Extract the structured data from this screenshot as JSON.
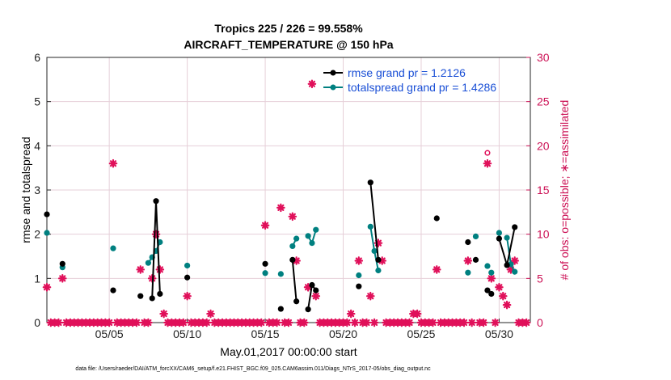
{
  "chart_data": {
    "type": "line",
    "title_line1": "Tropics 225 / 226 = 99.558%",
    "title_line2": "AIRCRAFT_TEMPERATURE @ 150 hPa",
    "xlabel": "May.01,2017 00:00:00 start",
    "ylabel": "rmse and totalspread",
    "y2label": "# of obs: o=possible; ∗=assimilated",
    "footer": "data file: /Users/raeder/DAI/ATM_forcXX/CAM6_setup/f.e21.FHIST_BGC.f09_025.CAM6assim.011/Diags_NTrS_2017-05/obs_diag_output.nc",
    "xlim": [
      1,
      32
    ],
    "ylim": [
      0,
      6
    ],
    "y2lim": [
      0,
      30
    ],
    "x_ticks": [
      5,
      10,
      15,
      20,
      25,
      30
    ],
    "x_tick_labels": [
      "05/05",
      "05/10",
      "05/15",
      "05/20",
      "05/25",
      "05/30"
    ],
    "y_ticks": [
      0,
      1,
      2,
      3,
      4,
      5,
      6
    ],
    "y_tick_labels": [
      "0",
      "1",
      "2",
      "3",
      "4",
      "5",
      "6"
    ],
    "y2_ticks": [
      0,
      5,
      10,
      15,
      20,
      25,
      30
    ],
    "y2_tick_labels": [
      "0",
      "5",
      "10",
      "15",
      "20",
      "25",
      "30"
    ],
    "grid": true,
    "legend_position": "top-right",
    "colors": {
      "rmse": "#000000",
      "spread": "#008080",
      "obs": "#e0105a",
      "legend_text": "#1a4fd6",
      "axis_right": "#cc1155"
    },
    "series": [
      {
        "name": "rmse grand pr = 1.2126",
        "key": "rmse",
        "points": [
          [
            1.0,
            2.45
          ],
          [
            2.0,
            1.33
          ],
          [
            5.25,
            0.73
          ],
          [
            7.0,
            0.6
          ],
          [
            7.75,
            0.55
          ],
          [
            8.0,
            2.75
          ],
          [
            8.25,
            0.65
          ],
          [
            10.0,
            1.02
          ],
          [
            15.0,
            1.33
          ],
          [
            16.0,
            0.31
          ],
          [
            16.75,
            1.42
          ],
          [
            17.0,
            0.48
          ],
          [
            17.75,
            0.3
          ],
          [
            18.0,
            0.85
          ],
          [
            18.25,
            0.73
          ],
          [
            21.0,
            0.82
          ],
          [
            21.75,
            3.17
          ],
          [
            22.25,
            1.42
          ],
          [
            26.0,
            2.36
          ],
          [
            28.0,
            1.82
          ],
          [
            28.5,
            1.42
          ],
          [
            29.25,
            0.73
          ],
          [
            29.5,
            0.65
          ],
          [
            30.0,
            1.9
          ],
          [
            30.5,
            1.3
          ],
          [
            31.0,
            2.16
          ]
        ],
        "segments": [
          [
            [
              7.75,
              0.55
            ],
            [
              8.0,
              2.75
            ],
            [
              8.25,
              0.65
            ]
          ],
          [
            [
              16.75,
              1.42
            ],
            [
              17.0,
              0.48
            ]
          ],
          [
            [
              17.75,
              0.3
            ],
            [
              18.0,
              0.85
            ],
            [
              18.25,
              0.73
            ]
          ],
          [
            [
              21.75,
              3.17
            ],
            [
              22.25,
              1.42
            ]
          ],
          [
            [
              29.25,
              0.73
            ],
            [
              29.5,
              0.65
            ]
          ],
          [
            [
              30.0,
              1.9
            ],
            [
              30.5,
              1.3
            ],
            [
              31.0,
              2.16
            ]
          ]
        ]
      },
      {
        "name": "totalspread grand pr = 1.4286",
        "key": "spread",
        "points": [
          [
            1.0,
            2.03
          ],
          [
            2.0,
            1.25
          ],
          [
            5.25,
            1.68
          ],
          [
            7.5,
            1.35
          ],
          [
            7.75,
            1.48
          ],
          [
            8.0,
            1.62
          ],
          [
            8.25,
            1.82
          ],
          [
            10.0,
            1.29
          ],
          [
            15.0,
            1.12
          ],
          [
            16.0,
            1.1
          ],
          [
            16.75,
            1.73
          ],
          [
            17.0,
            1.9
          ],
          [
            17.75,
            1.96
          ],
          [
            18.0,
            1.8
          ],
          [
            18.25,
            2.1
          ],
          [
            21.0,
            1.07
          ],
          [
            21.75,
            2.17
          ],
          [
            22.0,
            1.62
          ],
          [
            22.25,
            1.18
          ],
          [
            28.0,
            1.13
          ],
          [
            28.5,
            1.95
          ],
          [
            29.25,
            1.28
          ],
          [
            29.5,
            1.13
          ],
          [
            30.0,
            2.03
          ],
          [
            30.5,
            1.92
          ],
          [
            30.75,
            1.32
          ],
          [
            31.0,
            1.15
          ]
        ],
        "segments": [
          [
            [
              7.5,
              1.35
            ],
            [
              7.75,
              1.48
            ],
            [
              8.0,
              1.62
            ],
            [
              8.25,
              1.82
            ]
          ],
          [
            [
              16.75,
              1.73
            ],
            [
              17.0,
              1.9
            ]
          ],
          [
            [
              17.75,
              1.96
            ],
            [
              18.0,
              1.8
            ],
            [
              18.25,
              2.1
            ]
          ],
          [
            [
              21.75,
              2.17
            ],
            [
              22.0,
              1.62
            ],
            [
              22.25,
              1.18
            ]
          ],
          [
            [
              30.5,
              1.92
            ],
            [
              30.75,
              1.32
            ],
            [
              31.0,
              1.15
            ]
          ]
        ]
      },
      {
        "name": "# of obs assimilated",
        "key": "obs_assimilated",
        "points": [
          [
            1,
            4
          ],
          [
            2,
            5
          ],
          [
            5.25,
            18
          ],
          [
            7,
            6
          ],
          [
            7.75,
            5
          ],
          [
            8.0,
            10
          ],
          [
            8.25,
            6
          ],
          [
            8.5,
            1
          ],
          [
            10,
            3
          ],
          [
            11.5,
            1
          ],
          [
            15,
            11
          ],
          [
            16,
            13
          ],
          [
            16.75,
            12
          ],
          [
            17,
            7
          ],
          [
            17.75,
            4
          ],
          [
            18,
            27
          ],
          [
            18.25,
            3
          ],
          [
            20.5,
            1
          ],
          [
            21,
            7
          ],
          [
            21.75,
            3
          ],
          [
            22.25,
            9
          ],
          [
            22.5,
            7
          ],
          [
            24.5,
            1
          ],
          [
            24.75,
            1
          ],
          [
            26,
            6
          ],
          [
            28,
            7
          ],
          [
            29.25,
            18
          ],
          [
            29.5,
            5
          ],
          [
            30,
            4
          ],
          [
            30.25,
            3
          ],
          [
            30.5,
            2
          ],
          [
            30.75,
            6
          ],
          [
            31,
            7
          ]
        ]
      },
      {
        "name": "# of obs possible",
        "key": "obs_possible",
        "points": [
          [
            29.25,
            19.2
          ]
        ]
      },
      {
        "name": "zero obs",
        "key": "obs_zero",
        "x": [
          1.25,
          1.5,
          1.75,
          2.25,
          2.5,
          2.75,
          3,
          3.25,
          3.5,
          3.75,
          4,
          4.25,
          4.5,
          4.75,
          5,
          5.5,
          5.75,
          6,
          6.25,
          6.5,
          6.75,
          7.25,
          7.5,
          8.75,
          9,
          9.25,
          9.5,
          9.75,
          10.25,
          10.5,
          10.75,
          11,
          11.25,
          11.75,
          12,
          12.25,
          12.5,
          12.75,
          13,
          13.25,
          13.5,
          13.75,
          14,
          14.25,
          14.5,
          14.75,
          15.25,
          15.5,
          15.75,
          16.25,
          16.5,
          17.25,
          17.5,
          18.5,
          18.75,
          19,
          19.25,
          19.5,
          19.75,
          20,
          20.25,
          20.75,
          21.25,
          21.5,
          22,
          22.75,
          23,
          23.25,
          23.5,
          23.75,
          24,
          24.25,
          25,
          25.25,
          25.5,
          25.75,
          26.25,
          26.5,
          26.75,
          27,
          27.25,
          27.5,
          27.75,
          28.25,
          28.75,
          29,
          29.75,
          31.25,
          31.5,
          31.75
        ]
      }
    ]
  }
}
